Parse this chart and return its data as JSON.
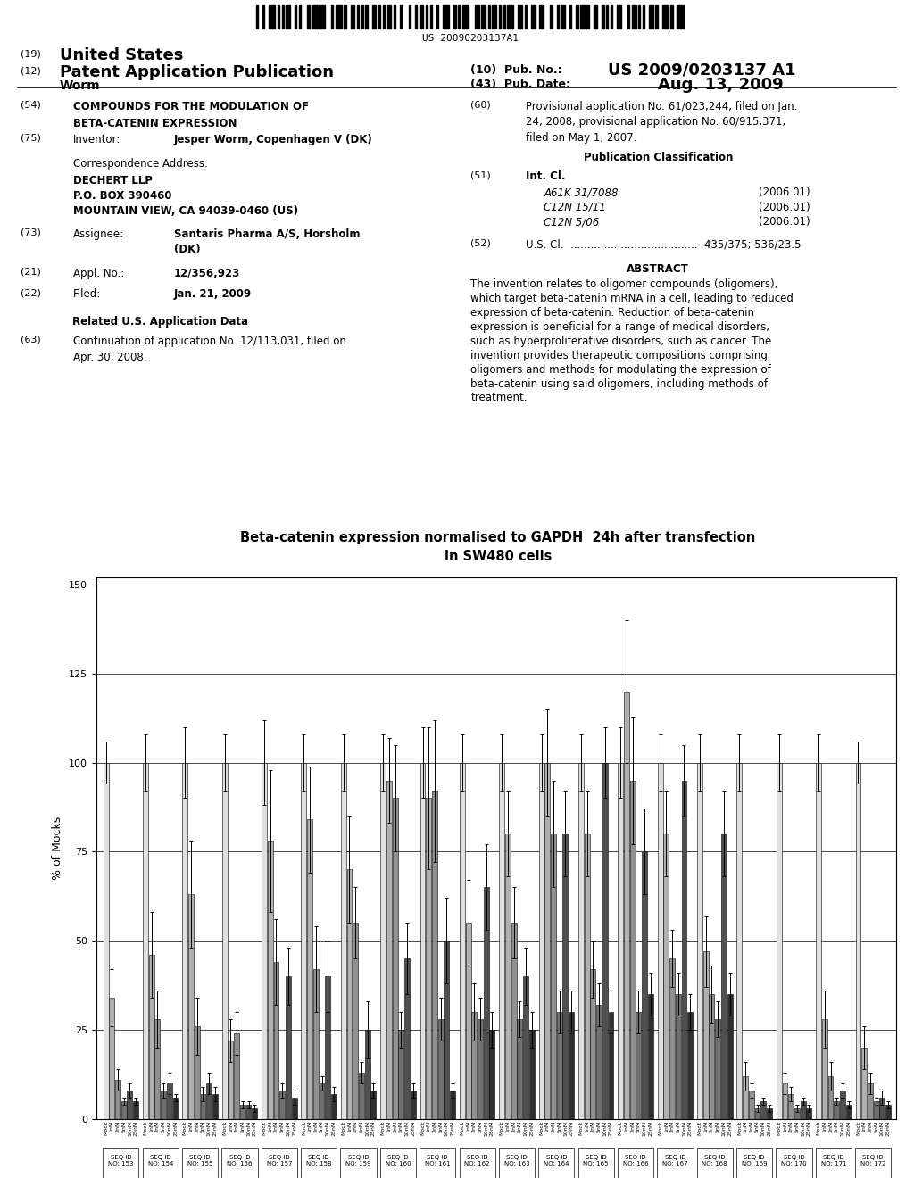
{
  "title_line1": "Beta-catenin expression normalised to GAPDH  24h after transfection",
  "title_line2": "in SW480 cells",
  "ylabel": "% of Mocks",
  "yticks": [
    0,
    25,
    50,
    75,
    100,
    125,
    150
  ],
  "ylim": [
    0,
    152
  ],
  "groups": [
    {
      "seq_id": 153,
      "bars": [
        100,
        34,
        11,
        5,
        8,
        5
      ],
      "errors": [
        6,
        8,
        3,
        1,
        2,
        1
      ]
    },
    {
      "seq_id": 154,
      "bars": [
        100,
        46,
        28,
        8,
        10,
        6
      ],
      "errors": [
        8,
        12,
        8,
        2,
        3,
        1
      ]
    },
    {
      "seq_id": 155,
      "bars": [
        100,
        63,
        26,
        7,
        10,
        7
      ],
      "errors": [
        10,
        15,
        8,
        2,
        3,
        2
      ]
    },
    {
      "seq_id": 156,
      "bars": [
        100,
        22,
        24,
        4,
        4,
        3
      ],
      "errors": [
        8,
        6,
        6,
        1,
        1,
        1
      ]
    },
    {
      "seq_id": 157,
      "bars": [
        100,
        78,
        44,
        8,
        40,
        6
      ],
      "errors": [
        12,
        20,
        12,
        2,
        8,
        2
      ]
    },
    {
      "seq_id": 158,
      "bars": [
        100,
        84,
        42,
        10,
        40,
        7
      ],
      "errors": [
        8,
        15,
        12,
        2,
        10,
        2
      ]
    },
    {
      "seq_id": 159,
      "bars": [
        100,
        70,
        55,
        13,
        25,
        8
      ],
      "errors": [
        8,
        15,
        10,
        3,
        8,
        2
      ]
    },
    {
      "seq_id": 160,
      "bars": [
        100,
        95,
        90,
        25,
        45,
        8
      ],
      "errors": [
        8,
        12,
        15,
        5,
        10,
        2
      ]
    },
    {
      "seq_id": 161,
      "bars": [
        100,
        90,
        92,
        28,
        50,
        8
      ],
      "errors": [
        10,
        20,
        20,
        6,
        12,
        2
      ]
    },
    {
      "seq_id": 162,
      "bars": [
        100,
        55,
        30,
        28,
        65,
        25
      ],
      "errors": [
        8,
        12,
        8,
        6,
        12,
        5
      ]
    },
    {
      "seq_id": 163,
      "bars": [
        100,
        80,
        55,
        28,
        40,
        25
      ],
      "errors": [
        8,
        12,
        10,
        5,
        8,
        5
      ]
    },
    {
      "seq_id": 164,
      "bars": [
        100,
        100,
        80,
        30,
        80,
        30
      ],
      "errors": [
        8,
        15,
        15,
        6,
        12,
        6
      ]
    },
    {
      "seq_id": 165,
      "bars": [
        100,
        80,
        42,
        32,
        100,
        30
      ],
      "errors": [
        8,
        12,
        8,
        6,
        10,
        6
      ]
    },
    {
      "seq_id": 166,
      "bars": [
        100,
        120,
        95,
        30,
        75,
        35
      ],
      "errors": [
        10,
        20,
        18,
        6,
        12,
        6
      ]
    },
    {
      "seq_id": 167,
      "bars": [
        100,
        80,
        45,
        35,
        95,
        30
      ],
      "errors": [
        8,
        12,
        8,
        6,
        10,
        5
      ]
    },
    {
      "seq_id": 168,
      "bars": [
        100,
        47,
        35,
        28,
        80,
        35
      ],
      "errors": [
        8,
        10,
        8,
        5,
        12,
        6
      ]
    },
    {
      "seq_id": 169,
      "bars": [
        100,
        12,
        8,
        3,
        5,
        3
      ],
      "errors": [
        8,
        4,
        2,
        1,
        1,
        1
      ]
    },
    {
      "seq_id": 170,
      "bars": [
        100,
        10,
        7,
        3,
        5,
        3
      ],
      "errors": [
        8,
        3,
        2,
        1,
        1,
        1
      ]
    },
    {
      "seq_id": 171,
      "bars": [
        100,
        28,
        12,
        5,
        8,
        4
      ],
      "errors": [
        8,
        8,
        4,
        1,
        2,
        1
      ]
    },
    {
      "seq_id": 172,
      "bars": [
        100,
        20,
        10,
        5,
        6,
        4
      ],
      "errors": [
        6,
        6,
        3,
        1,
        2,
        1
      ]
    }
  ],
  "dose_labels": [
    "Mock",
    "1nM",
    "2nM",
    "5nM",
    "10nM",
    "25nM"
  ],
  "header": {
    "barcode": "US 20090203137A1",
    "pub_no": "US 2009/0203137 A1",
    "pub_date": "Aug. 13, 2009",
    "abstract": "The invention relates to oligomer compounds (oligomers), which target beta-catenin mRNA in a cell, leading to reduced expression of beta-catenin. Reduction of beta-catenin expression is beneficial for a range of medical disorders, such as hyperproliferative disorders, such as cancer. The invention provides therapeutic compositions comprising oligomers and methods for modulating the expression of beta-catenin using said oligomers, including methods of treatment.",
    "int_cl": [
      [
        "A61K 31/7088",
        "(2006.01)"
      ],
      [
        "C12N 15/11",
        "(2006.01)"
      ],
      [
        "C12N 5/06",
        "(2006.01)"
      ]
    ]
  }
}
